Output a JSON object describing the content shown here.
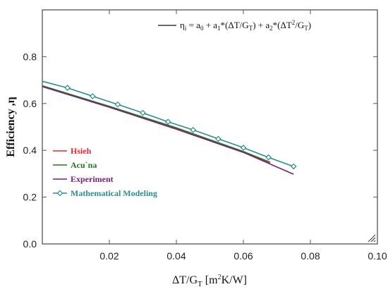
{
  "chart_data": {
    "type": "line",
    "xlabel": "ΔT/G_T [m²K/W]",
    "ylabel": "Efficiency ,η",
    "xlim": [
      0.0,
      0.1
    ],
    "ylim": [
      0.0,
      1.0
    ],
    "x_ticks": [
      "0.02",
      "0.04",
      "0.06",
      "0.08",
      "0.10"
    ],
    "y_ticks": [
      "0.0",
      "0.2",
      "0.4",
      "0.6",
      "0.8"
    ],
    "annotation": "η_i = a_0 + a_1*(ΔT/G_T) + a_2*(ΔT²/G_T)",
    "legend_position": "left",
    "series": [
      {
        "name": "Hsieh",
        "color": "#e8262d",
        "marker": "none",
        "x": [
          0.0,
          0.02,
          0.04,
          0.06,
          0.068
        ],
        "y": [
          0.675,
          0.586,
          0.494,
          0.393,
          0.347
        ]
      },
      {
        "name": "Acu`na",
        "color": "#1d7a1d",
        "marker": "none",
        "x": [
          0.0,
          0.02,
          0.04,
          0.06,
          0.068
        ],
        "y": [
          0.676,
          0.588,
          0.496,
          0.395,
          0.349
        ]
      },
      {
        "name": "Experiment",
        "color": "#7b1f7b",
        "marker": "none",
        "x": [
          0.0,
          0.02,
          0.04,
          0.06,
          0.075
        ],
        "y": [
          0.672,
          0.584,
          0.49,
          0.391,
          0.298
        ]
      },
      {
        "name": "Mathematical Modeling",
        "color": "#2a8f8a",
        "marker": "diamond",
        "x": [
          0.0,
          0.0075,
          0.015,
          0.0225,
          0.03,
          0.0375,
          0.045,
          0.0525,
          0.06,
          0.0675,
          0.075
        ],
        "y": [
          0.695,
          0.667,
          0.631,
          0.596,
          0.56,
          0.522,
          0.487,
          0.449,
          0.411,
          0.37,
          0.331
        ]
      }
    ]
  }
}
